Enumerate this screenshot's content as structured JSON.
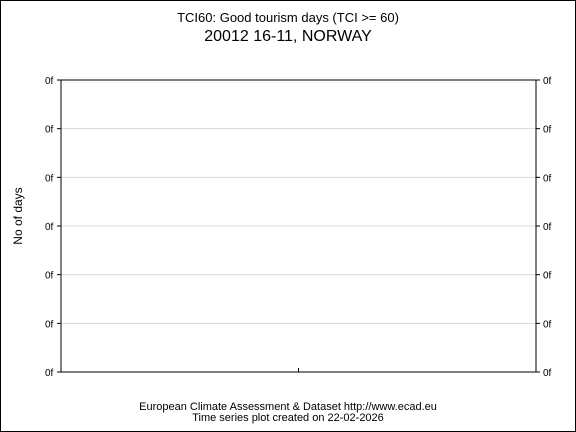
{
  "chart_data": {
    "type": "line",
    "title": "TCI60: Good tourism days (TCI >= 60)",
    "subtitle": "20012 16-11, NORWAY",
    "xlabel": "",
    "ylabel": "No of days",
    "y_tick_labels": [
      "0f",
      "0f",
      "0f",
      "0f",
      "0f",
      "0f",
      "0f"
    ],
    "series": [],
    "grid": true
  },
  "footer": {
    "line1": "European Climate Assessment & Dataset  http://www.ecad.eu",
    "line2": "Time series plot created on 22-02-2026"
  }
}
